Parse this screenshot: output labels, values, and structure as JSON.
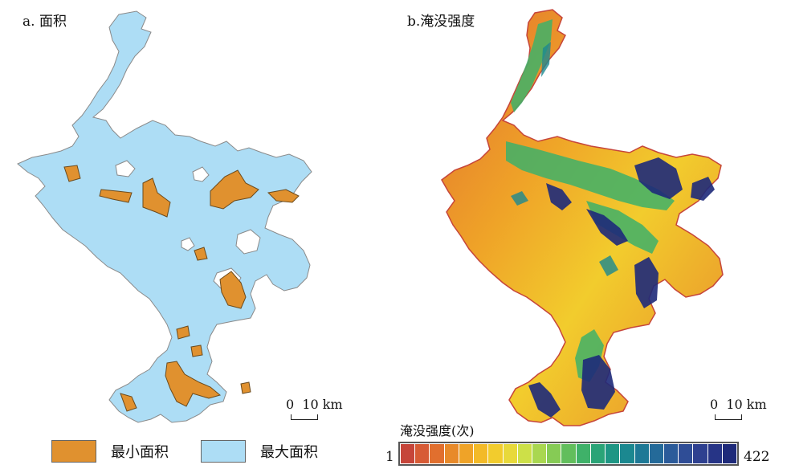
{
  "panel_a": {
    "title": "a. 面积",
    "legend": [
      {
        "label": "最小面积",
        "color": "#E0912F"
      },
      {
        "label": "最大面积",
        "color": "#ADDDF5"
      }
    ],
    "scale_label": "0  10 km"
  },
  "panel_b": {
    "title": "b.淹没强度",
    "scale_label": "0  10 km",
    "colorbar": {
      "title": "淹没强度(次)",
      "min_label": "1",
      "max_label": "422",
      "colors": [
        "#C6453A",
        "#D75B35",
        "#E16F2E",
        "#E88A2A",
        "#EFA328",
        "#F3BA28",
        "#F2CC2D",
        "#E8D93A",
        "#CDE048",
        "#A9D750",
        "#86CB55",
        "#62BE5C",
        "#3FB169",
        "#2AA477",
        "#1E9684",
        "#1B8890",
        "#1E7996",
        "#246A99",
        "#2B5B9A",
        "#2F4D96",
        "#2E4090",
        "#263486",
        "#1E2A7A"
      ]
    }
  }
}
